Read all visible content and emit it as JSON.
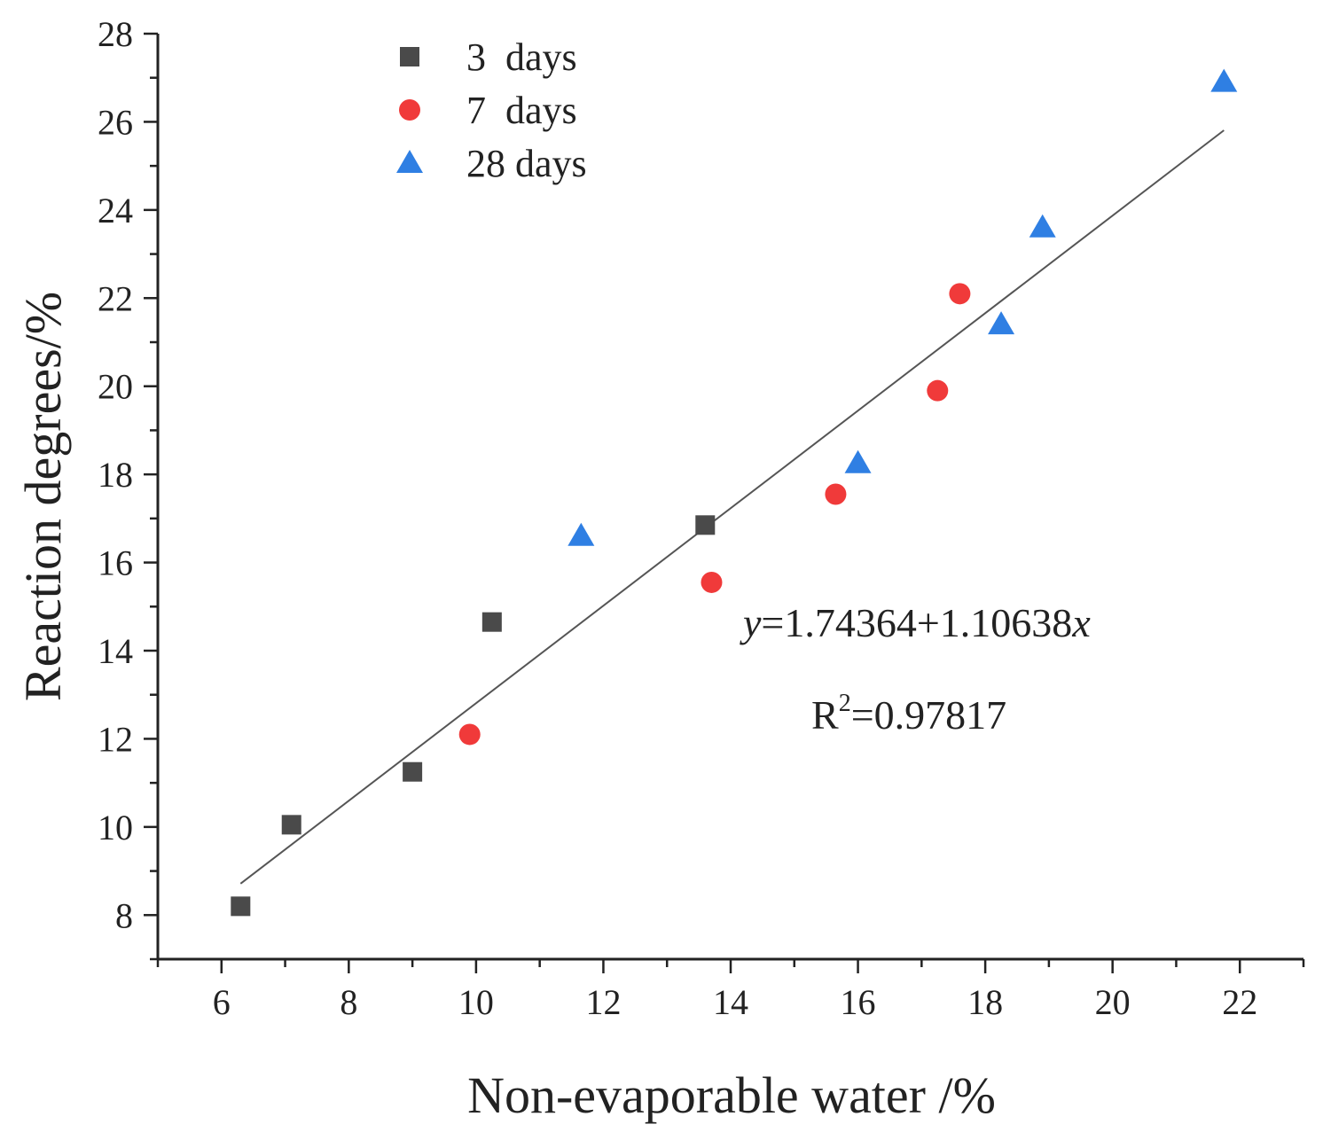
{
  "chart_data": {
    "type": "scatter",
    "xlabel": "Non-evaporable water /%",
    "ylabel": "Reaction degrees/%",
    "xlim": [
      5,
      23
    ],
    "ylim": [
      7,
      28
    ],
    "x_ticks": [
      6,
      8,
      10,
      12,
      14,
      16,
      18,
      20,
      22
    ],
    "y_ticks": [
      8,
      10,
      12,
      14,
      16,
      18,
      20,
      22,
      24,
      26,
      28
    ],
    "legend_position": "top-left",
    "series": [
      {
        "name": "3  days",
        "marker": "square",
        "color": "#4a4a4a",
        "points": [
          [
            6.3,
            8.2
          ],
          [
            7.1,
            10.05
          ],
          [
            9.0,
            11.25
          ],
          [
            10.25,
            14.65
          ],
          [
            13.6,
            16.85
          ]
        ]
      },
      {
        "name": "7  days",
        "marker": "circle",
        "color": "#f03a3a",
        "points": [
          [
            9.9,
            12.1
          ],
          [
            13.7,
            15.55
          ],
          [
            15.65,
            17.55
          ],
          [
            17.25,
            19.9
          ],
          [
            17.6,
            22.1
          ]
        ]
      },
      {
        "name": "28 days",
        "marker": "triangle",
        "color": "#2f7fe3",
        "points": [
          [
            11.65,
            16.6
          ],
          [
            16.0,
            18.25
          ],
          [
            18.25,
            21.4
          ],
          [
            18.9,
            23.6
          ],
          [
            21.75,
            26.9
          ]
        ]
      }
    ],
    "fit": {
      "intercept": 1.74364,
      "slope": 1.10638,
      "x_range": [
        6.3,
        21.75
      ],
      "color": "#555555",
      "equation_y": "y",
      "equation_mid": "=1.74364+1.10638",
      "equation_x": "x",
      "r2_label": "R",
      "r2_sup": "2",
      "r2_value": "=0.97817"
    }
  }
}
